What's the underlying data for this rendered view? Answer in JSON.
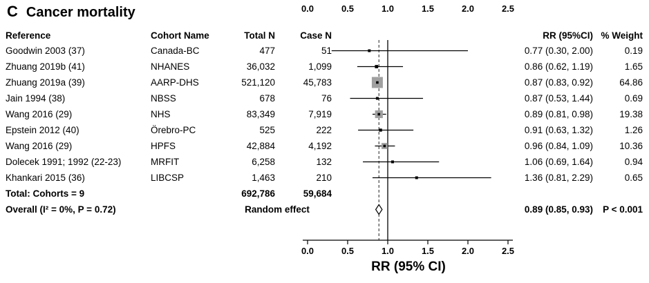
{
  "figure": {
    "panel_label": "C",
    "title": "Cancer mortality"
  },
  "table": {
    "headers": {
      "reference": "Reference",
      "cohort": "Cohort Name",
      "total_n": "Total N",
      "case_n": "Case N",
      "rr": "RR (95%CI)",
      "weight": "% Weight"
    }
  },
  "chart_data": {
    "type": "forest",
    "panel": "C",
    "title": "Cancer mortality",
    "xlabel": "RR (95% CI)",
    "x_tick_labels": [
      "0.0",
      "0.5",
      "1.0",
      "1.5",
      "2.0",
      "2.5"
    ],
    "x_tick_values": [
      0,
      0.5,
      1,
      1.5,
      2,
      2.5
    ],
    "xlim": [
      0,
      2.5
    ],
    "reference_line": 1.0,
    "pooled_estimate_line": 0.89,
    "studies": [
      {
        "reference": "Goodwin 2003 (37)",
        "cohort": "Canada-BC",
        "total_n": "477",
        "case_n": "51",
        "rr": 0.77,
        "ci_low": 0.3,
        "ci_high": 2.0,
        "rr_text": "0.77 (0.30, 2.00)",
        "weight": 0.19,
        "weight_text": "0.19"
      },
      {
        "reference": "Zhuang 2019b (41)",
        "cohort": "NHANES",
        "total_n": "36,032",
        "case_n": "1,099",
        "rr": 0.86,
        "ci_low": 0.62,
        "ci_high": 1.19,
        "rr_text": "0.86 (0.62, 1.19)",
        "weight": 1.65,
        "weight_text": "1.65"
      },
      {
        "reference": "Zhuang 2019a (39)",
        "cohort": "AARP-DHS",
        "total_n": "521,120",
        "case_n": "45,783",
        "rr": 0.87,
        "ci_low": 0.83,
        "ci_high": 0.92,
        "rr_text": "0.87 (0.83, 0.92)",
        "weight": 64.86,
        "weight_text": "64.86"
      },
      {
        "reference": "Jain 1994 (38)",
        "cohort": "NBSS",
        "total_n": "678",
        "case_n": "76",
        "rr": 0.87,
        "ci_low": 0.53,
        "ci_high": 1.44,
        "rr_text": "0.87 (0.53, 1.44)",
        "weight": 0.69,
        "weight_text": "0.69"
      },
      {
        "reference": "Wang 2016 (29)",
        "cohort": "NHS",
        "total_n": "83,349",
        "case_n": "7,919",
        "rr": 0.89,
        "ci_low": 0.81,
        "ci_high": 0.98,
        "rr_text": "0.89 (0.81, 0.98)",
        "weight": 19.38,
        "weight_text": "19.38"
      },
      {
        "reference": "Epstein 2012 (40)",
        "cohort": "Örebro-PC",
        "total_n": "525",
        "case_n": "222",
        "rr": 0.91,
        "ci_low": 0.63,
        "ci_high": 1.32,
        "rr_text": "0.91 (0.63, 1.32)",
        "weight": 1.26,
        "weight_text": "1.26"
      },
      {
        "reference": "Wang 2016 (29)",
        "cohort": "HPFS",
        "total_n": "42,884",
        "case_n": "4,192",
        "rr": 0.96,
        "ci_low": 0.84,
        "ci_high": 1.09,
        "rr_text": "0.96 (0.84, 1.09)",
        "weight": 10.36,
        "weight_text": "10.36"
      },
      {
        "reference": "Dolecek 1991; 1992 (22-23)",
        "cohort": "MRFIT",
        "total_n": "6,258",
        "case_n": "132",
        "rr": 1.06,
        "ci_low": 0.69,
        "ci_high": 1.64,
        "rr_text": "1.06 (0.69, 1.64)",
        "weight": 0.94,
        "weight_text": "0.94"
      },
      {
        "reference": "Khankari 2015 (36)",
        "cohort": "LIBCSP",
        "total_n": "1,463",
        "case_n": "210",
        "rr": 1.36,
        "ci_low": 0.81,
        "ci_high": 2.29,
        "rr_text": "1.36 (0.81, 2.29)",
        "weight": 0.65,
        "weight_text": "0.65"
      }
    ],
    "total": {
      "label": "Total: Cohorts = 9",
      "total_n": "692,786",
      "case_n": "59,684"
    },
    "overall": {
      "label": "Overall (I² = 0%, P = 0.72)",
      "effect_label": "Random effect",
      "rr": 0.89,
      "ci_low": 0.85,
      "ci_high": 0.93,
      "rr_text": "0.89 (0.85, 0.93)",
      "p_text": "P < 0.001"
    }
  }
}
